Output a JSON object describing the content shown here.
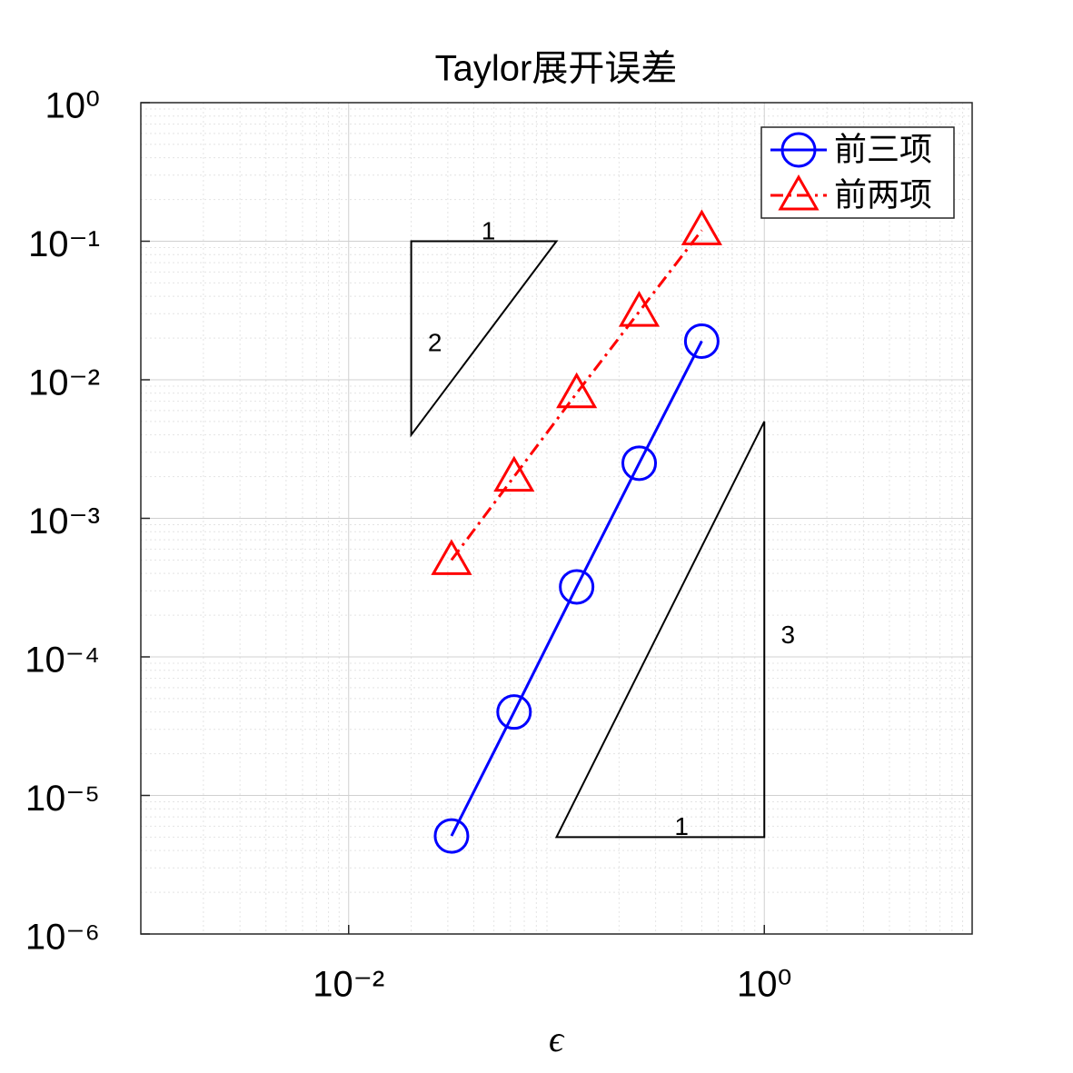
{
  "chart_data": {
    "type": "line",
    "title": "Taylor展开误差",
    "x_label": "ϵ",
    "x_scale": "log",
    "y_scale": "log",
    "xlim": [
      0.001,
      10
    ],
    "ylim": [
      1e-06,
      1
    ],
    "xticks": [
      {
        "value": 0.01,
        "label": "10⁻²"
      },
      {
        "value": 1,
        "label": "10⁰"
      }
    ],
    "yticks": [
      {
        "value": 1e-06,
        "label": "10⁻⁶"
      },
      {
        "value": 1e-05,
        "label": "10⁻⁵"
      },
      {
        "value": 0.0001,
        "label": "10⁻⁴"
      },
      {
        "value": 0.001,
        "label": "10⁻³"
      },
      {
        "value": 0.01,
        "label": "10⁻²"
      },
      {
        "value": 0.1,
        "label": "10⁻¹"
      },
      {
        "value": 1,
        "label": "10⁰"
      }
    ],
    "grid": true,
    "minor_grid": true,
    "legend": "northeast",
    "x": [
      0.03125,
      0.0625,
      0.125,
      0.25,
      0.5
    ],
    "series": [
      {
        "name": "前三项",
        "color": "#0000ff",
        "marker": "circle",
        "line_style": "solid",
        "values": [
          5.1e-06,
          4e-05,
          0.00032,
          0.0025,
          0.019
        ]
      },
      {
        "name": "前两项",
        "color": "#ff0000",
        "marker": "triangle",
        "line_style": "dashdot",
        "values": [
          0.0005,
          0.002,
          0.008,
          0.031,
          0.12
        ]
      }
    ],
    "slope_triangles": [
      {
        "points": [
          [
            0.02,
            0.1
          ],
          [
            0.1,
            0.1
          ],
          [
            0.02,
            0.004
          ]
        ],
        "labels": [
          {
            "text": "1",
            "x": 0.047,
            "y": 0.115
          },
          {
            "text": "2",
            "x": 0.026,
            "y": 0.018
          }
        ]
      },
      {
        "points": [
          [
            0.1,
            5e-06
          ],
          [
            1,
            5e-06
          ],
          [
            1,
            0.005
          ]
        ],
        "labels": [
          {
            "text": "3",
            "x": 1.3,
            "y": 0.00014
          },
          {
            "text": "1",
            "x": 0.4,
            "y": 5.8e-06
          }
        ]
      }
    ]
  }
}
